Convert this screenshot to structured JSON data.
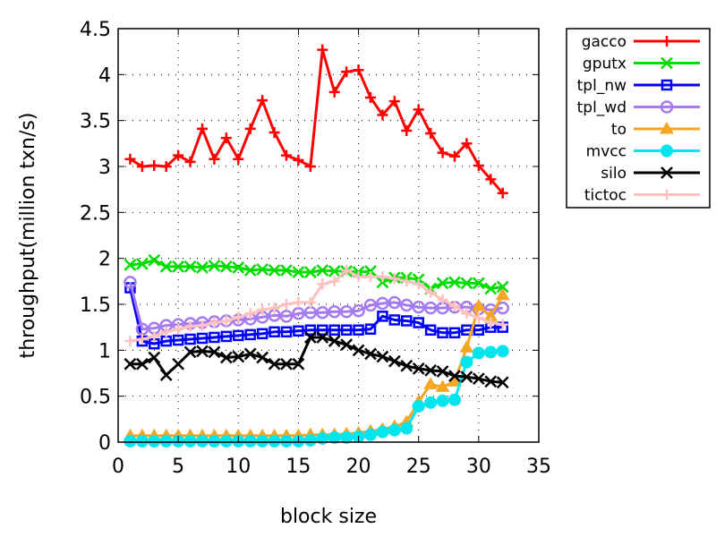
{
  "chart_data": {
    "type": "line",
    "xlabel": "block size",
    "ylabel": "throughput(million txn/s)",
    "xlim": [
      0,
      35
    ],
    "ylim": [
      0,
      4.5
    ],
    "xticks": [
      0,
      5,
      10,
      15,
      20,
      25,
      30,
      35
    ],
    "yticks": [
      0,
      0.5,
      1,
      1.5,
      2,
      2.5,
      3,
      3.5,
      4,
      4.5
    ],
    "grid": true,
    "legend_position": "outside-top-right",
    "x": [
      1,
      2,
      3,
      4,
      5,
      6,
      7,
      8,
      9,
      10,
      11,
      12,
      13,
      14,
      15,
      16,
      17,
      18,
      19,
      20,
      21,
      22,
      23,
      24,
      25,
      26,
      27,
      28,
      29,
      30,
      31,
      32
    ],
    "series": [
      {
        "name": "gacco",
        "color": "#ff0000",
        "marker": "plus",
        "values": [
          3.08,
          3.0,
          3.01,
          3.0,
          3.12,
          3.05,
          3.41,
          3.08,
          3.31,
          3.08,
          3.41,
          3.72,
          3.37,
          3.12,
          3.07,
          3.0,
          4.27,
          3.81,
          4.03,
          4.05,
          3.75,
          3.56,
          3.71,
          3.39,
          3.62,
          3.36,
          3.15,
          3.11,
          3.25,
          3.01,
          2.86,
          2.71
        ]
      },
      {
        "name": "gputx",
        "color": "#00dd00",
        "marker": "x",
        "values": [
          1.93,
          1.94,
          1.98,
          1.91,
          1.91,
          1.91,
          1.9,
          1.92,
          1.91,
          1.9,
          1.87,
          1.88,
          1.87,
          1.87,
          1.85,
          1.85,
          1.87,
          1.86,
          1.86,
          1.85,
          1.86,
          1.74,
          1.79,
          1.79,
          1.77,
          1.67,
          1.73,
          1.74,
          1.73,
          1.73,
          1.67,
          1.69
        ]
      },
      {
        "name": "tpl_nw",
        "color": "#0000ff",
        "marker": "square",
        "values": [
          1.68,
          1.1,
          1.07,
          1.1,
          1.11,
          1.12,
          1.13,
          1.14,
          1.15,
          1.16,
          1.17,
          1.18,
          1.2,
          1.2,
          1.21,
          1.22,
          1.22,
          1.22,
          1.22,
          1.22,
          1.23,
          1.37,
          1.33,
          1.32,
          1.3,
          1.22,
          1.19,
          1.19,
          1.22,
          1.22,
          1.25,
          1.25
        ]
      },
      {
        "name": "tpl_wd",
        "color": "#a57bf0",
        "marker": "circle",
        "values": [
          1.74,
          1.23,
          1.24,
          1.27,
          1.28,
          1.29,
          1.3,
          1.31,
          1.32,
          1.33,
          1.34,
          1.36,
          1.38,
          1.37,
          1.4,
          1.41,
          1.41,
          1.42,
          1.42,
          1.43,
          1.49,
          1.51,
          1.52,
          1.49,
          1.47,
          1.46,
          1.46,
          1.47,
          1.47,
          1.45,
          1.44,
          1.46
        ]
      },
      {
        "name": "to",
        "color": "#f5a623",
        "marker": "triangle",
        "values": [
          0.07,
          0.07,
          0.07,
          0.07,
          0.07,
          0.07,
          0.07,
          0.07,
          0.07,
          0.07,
          0.07,
          0.07,
          0.07,
          0.07,
          0.07,
          0.08,
          0.08,
          0.08,
          0.09,
          0.1,
          0.12,
          0.14,
          0.17,
          0.22,
          0.44,
          0.63,
          0.6,
          0.66,
          1.03,
          1.48,
          1.37,
          1.6
        ]
      },
      {
        "name": "mvcc",
        "color": "#00e5ee",
        "marker": "filled-circle",
        "values": [
          0.01,
          0.01,
          0.01,
          0.01,
          0.01,
          0.01,
          0.01,
          0.01,
          0.01,
          0.01,
          0.01,
          0.01,
          0.01,
          0.01,
          0.01,
          0.02,
          0.04,
          0.05,
          0.05,
          0.06,
          0.08,
          0.11,
          0.13,
          0.15,
          0.39,
          0.43,
          0.45,
          0.46,
          0.87,
          0.97,
          0.98,
          0.99
        ]
      },
      {
        "name": "silo",
        "color": "#000000",
        "marker": "x",
        "values": [
          0.85,
          0.85,
          0.92,
          0.73,
          0.85,
          0.98,
          0.99,
          0.98,
          0.92,
          0.93,
          0.96,
          0.92,
          0.85,
          0.85,
          0.85,
          1.14,
          1.14,
          1.1,
          1.06,
          1.0,
          0.96,
          0.93,
          0.88,
          0.83,
          0.8,
          0.78,
          0.77,
          0.72,
          0.71,
          0.69,
          0.66,
          0.65
        ]
      },
      {
        "name": "tictoc",
        "color": "#ffc0c0",
        "marker": "plus",
        "values": [
          1.1,
          1.12,
          1.15,
          1.2,
          1.23,
          1.26,
          1.27,
          1.3,
          1.32,
          1.36,
          1.4,
          1.44,
          1.46,
          1.5,
          1.52,
          1.52,
          1.72,
          1.75,
          1.87,
          1.8,
          1.8,
          1.8,
          1.78,
          1.75,
          1.72,
          1.63,
          1.55,
          1.48,
          1.4,
          1.35,
          1.3,
          1.28
        ]
      }
    ]
  }
}
